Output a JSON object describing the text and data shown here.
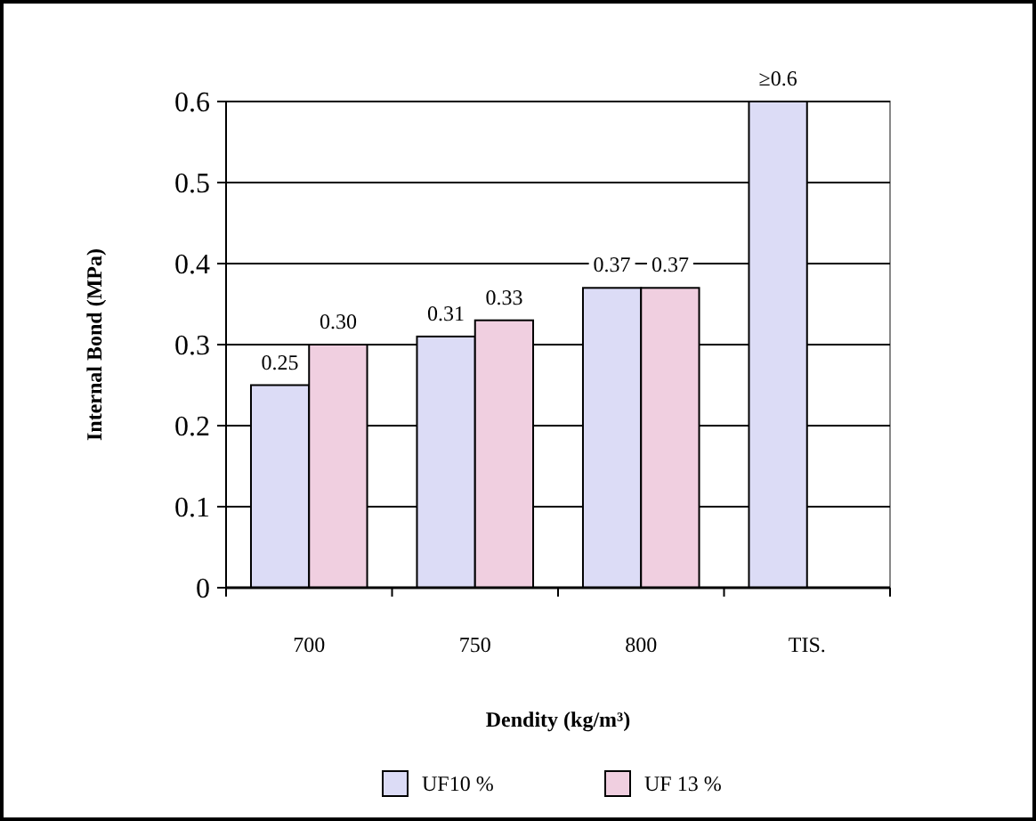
{
  "chart_data": {
    "type": "bar",
    "xlabel": "Dendity (kg/m³)",
    "ylabel": "Internal Bond (MPa)",
    "categories": [
      "700",
      "750",
      "800",
      "TIS."
    ],
    "series": [
      {
        "name": "UF10 %",
        "color": "#dcdcf6",
        "values": [
          0.25,
          0.31,
          0.37,
          0.6
        ],
        "value_labels": [
          "0.25",
          "0.31",
          "0.37",
          "≥0.6"
        ]
      },
      {
        "name": "UF 13 %",
        "color": "#f0cfe0",
        "values": [
          0.3,
          0.33,
          0.37,
          null
        ],
        "value_labels": [
          "0.30",
          "0.33",
          "0.37",
          null
        ]
      }
    ],
    "ylim": [
      0,
      0.6
    ],
    "yticks": [
      0,
      0.1,
      0.2,
      0.3,
      0.4,
      0.5,
      0.6
    ],
    "grid": "y",
    "legend": "bottom"
  }
}
